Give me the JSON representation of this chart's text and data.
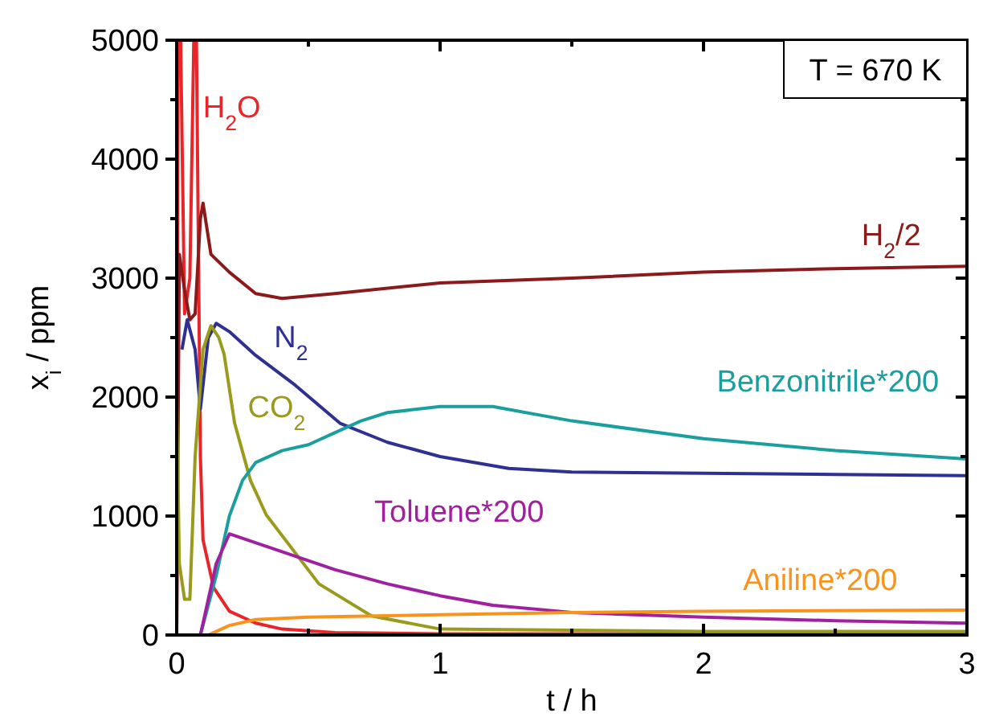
{
  "chart_data": {
    "type": "line",
    "xlabel": "t / h",
    "ylabel": "x$_{i}$ / ppm",
    "xlim": [
      0,
      3
    ],
    "ylim": [
      0,
      5000
    ],
    "xticks": [
      0,
      {
        "value": 0.5,
        "label": null
      },
      1,
      {
        "value": 1.5,
        "label": null
      },
      2,
      {
        "value": 2.5,
        "label": null
      },
      3
    ],
    "yticks": [
      0,
      {
        "value": 500,
        "label": null
      },
      1000,
      {
        "value": 1500,
        "label": null
      },
      2000,
      {
        "value": 2500,
        "label": null
      },
      3000,
      {
        "value": 3500,
        "label": null
      },
      4000,
      {
        "value": 4500,
        "label": null
      },
      5000
    ],
    "grid": false,
    "line_style": "solid",
    "annotations": [
      "T = 670 K"
    ],
    "series": [
      {
        "name": "H$_{2}$O",
        "color": "#e8262a",
        "x": [
          0,
          0.005,
          0.015,
          0.03,
          0.05,
          0.065,
          0.075,
          0.09,
          0.1,
          0.14,
          0.2,
          0.3,
          0.4,
          0.6,
          1,
          2,
          3
        ],
        "values": [
          0,
          5000,
          5000,
          2700,
          3000,
          5000,
          5000,
          1500,
          800,
          400,
          200,
          100,
          50,
          20,
          10,
          10,
          10
        ]
      },
      {
        "name": "H$_{2}$/2",
        "color": "#8b1a1a",
        "x": [
          0,
          0.01,
          0.03,
          0.05,
          0.07,
          0.09,
          0.1,
          0.13,
          0.2,
          0.3,
          0.4,
          0.6,
          1,
          1.5,
          2,
          2.5,
          3
        ],
        "values": [
          0,
          3200,
          2900,
          2650,
          2700,
          3500,
          3630,
          3200,
          3050,
          2870,
          2830,
          2870,
          2960,
          3000,
          3050,
          3080,
          3100
        ]
      },
      {
        "name": "N$_{2}$",
        "color": "#2e3192",
        "x": [
          0.02,
          0.04,
          0.07,
          0.09,
          0.12,
          0.15,
          0.2,
          0.3,
          0.45,
          0.62,
          0.8,
          1,
          1.26,
          1.5,
          2,
          2.5,
          3
        ],
        "values": [
          2400,
          2650,
          2400,
          1900,
          2500,
          2620,
          2550,
          2350,
          2100,
          1780,
          1620,
          1500,
          1400,
          1370,
          1360,
          1350,
          1340
        ]
      },
      {
        "name": "CO$_{2}$",
        "color": "#9a9a1c",
        "x": [
          0,
          0.01,
          0.03,
          0.05,
          0.07,
          0.1,
          0.13,
          0.16,
          0.18,
          0.22,
          0.28,
          0.34,
          0.54,
          0.74,
          1,
          2,
          3
        ],
        "values": [
          2000,
          600,
          300,
          300,
          1500,
          2400,
          2600,
          2500,
          2360,
          1780,
          1300,
          1010,
          430,
          160,
          50,
          30,
          30
        ]
      },
      {
        "name": "Benzonitrile*200",
        "color": "#1a9e9e",
        "x": [
          0.09,
          0.15,
          0.2,
          0.25,
          0.3,
          0.4,
          0.5,
          0.6,
          0.7,
          0.8,
          1,
          1.2,
          1.5,
          2,
          2.5,
          3
        ],
        "values": [
          0,
          500,
          1000,
          1300,
          1450,
          1550,
          1600,
          1700,
          1800,
          1870,
          1920,
          1920,
          1800,
          1650,
          1550,
          1480
        ]
      },
      {
        "name": "Toluene*200",
        "color": "#a020a0",
        "x": [
          0.09,
          0.15,
          0.2,
          0.4,
          0.6,
          0.8,
          1,
          1.2,
          1.5,
          2,
          2.5,
          3
        ],
        "values": [
          0,
          600,
          850,
          700,
          550,
          430,
          330,
          250,
          190,
          150,
          120,
          100
        ]
      },
      {
        "name": "Aniline*200",
        "color": "#f7941d",
        "x": [
          0.12,
          0.2,
          0.3,
          0.5,
          1,
          1.5,
          2,
          3
        ],
        "values": [
          0,
          80,
          130,
          150,
          170,
          190,
          200,
          210
        ]
      }
    ]
  }
}
